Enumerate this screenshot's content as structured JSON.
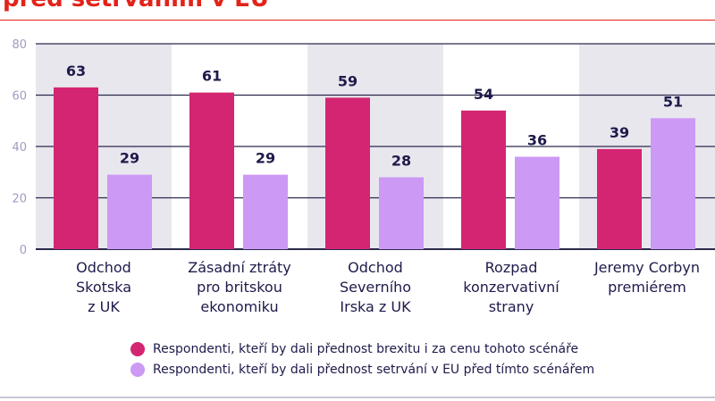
{
  "title": "před setrváním v EU",
  "colors": {
    "series1": "#d42572",
    "series2": "#cc99f5",
    "band": "#e9e7ee",
    "grid": "#2b2a4c",
    "axis_text": "#a09cc0",
    "text": "#1e1b4b"
  },
  "chart_data": {
    "type": "bar",
    "categories": [
      [
        "Odchod",
        "Skotska",
        "z UK"
      ],
      [
        "Zásadní ztráty",
        "pro britskou",
        "ekonomiku"
      ],
      [
        "Odchod",
        "Severního",
        "Irska z UK"
      ],
      [
        "Rozpad",
        "konzervativní",
        "strany"
      ],
      [
        "Jeremy Corbyn",
        "premiérem"
      ]
    ],
    "series": [
      {
        "name": "Respondenti, kteří by dali přednost brexitu i za cenu tohoto scénáře",
        "values": [
          63,
          61,
          59,
          54,
          39
        ]
      },
      {
        "name": "Respondenti, kteří by dali přednost setrvání v EU před tímto scénářem",
        "values": [
          29,
          29,
          28,
          36,
          51
        ]
      }
    ],
    "ylim": [
      0,
      80
    ],
    "yticks": [
      0,
      20,
      40,
      60,
      80
    ],
    "grid": true,
    "legend_placement": "bottom"
  }
}
